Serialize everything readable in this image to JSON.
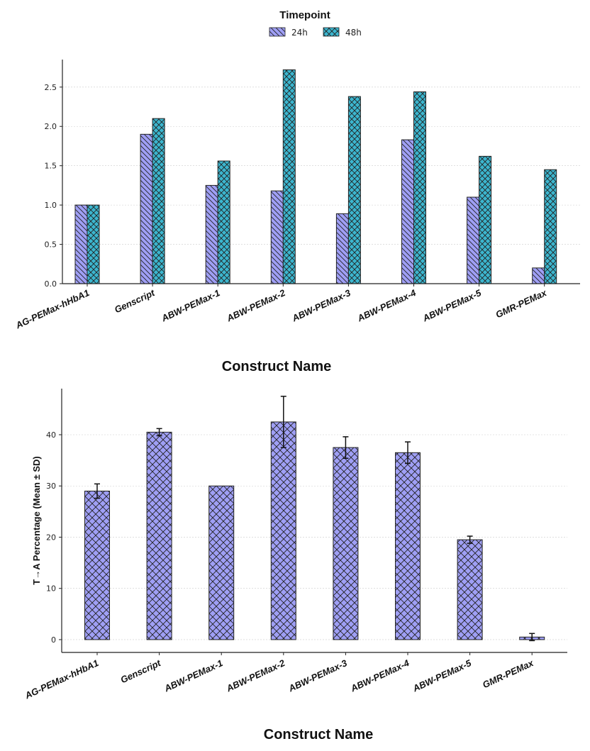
{
  "colors": {
    "h24": "#9f9ff5",
    "h48": "#3cb6cf",
    "edge": "#222222",
    "grid": "#cccccc"
  },
  "chart_data": [
    {
      "type": "bar",
      "legend": {
        "title": "Timepoint",
        "placement": "top-center",
        "entries": [
          "24h",
          "48h"
        ]
      },
      "categories": [
        "AG-PEMax-hHbA1",
        "Genscript",
        "ABW-PEMax-1",
        "ABW-PEMax-2",
        "ABW-PEMax-3",
        "ABW-PEMax-4",
        "ABW-PEMax-5",
        "GMR-PEMax"
      ],
      "series": [
        {
          "name": "24h",
          "values": [
            1.0,
            1.9,
            1.25,
            1.18,
            0.89,
            1.83,
            1.1,
            0.2
          ]
        },
        {
          "name": "48h",
          "values": [
            1.0,
            2.1,
            1.56,
            2.72,
            2.38,
            2.44,
            1.62,
            1.45
          ]
        }
      ],
      "xlabel": "Construct Name",
      "ylabel": "",
      "ylim": [
        0,
        2.85
      ],
      "yticks": [
        0.0,
        0.5,
        1.0,
        1.5,
        2.0,
        2.5
      ],
      "ytick_labels": [
        "0.0",
        "0.5",
        "1.0",
        "1.5",
        "2.0",
        "2.5"
      ],
      "grid": true
    },
    {
      "type": "bar",
      "categories": [
        "AG-PEMax-hHbA1",
        "Genscript",
        "ABW-PEMax-1",
        "ABW-PEMax-2",
        "ABW-PEMax-3",
        "ABW-PEMax-4",
        "ABW-PEMax-5",
        "GMR-PEMax"
      ],
      "values": [
        29.0,
        40.5,
        30.0,
        42.5,
        37.5,
        36.5,
        19.5,
        0.5
      ],
      "errors": [
        1.4,
        0.7,
        0.0,
        5.0,
        2.1,
        2.1,
        0.7,
        0.7
      ],
      "xlabel": "Construct Name",
      "ylabel": "T→A Percentage (Mean ± SD)",
      "ylim": [
        -2.5,
        49
      ],
      "yticks": [
        0,
        10,
        20,
        30,
        40
      ],
      "ytick_labels": [
        "0",
        "10",
        "20",
        "30",
        "40"
      ],
      "grid": true
    }
  ]
}
